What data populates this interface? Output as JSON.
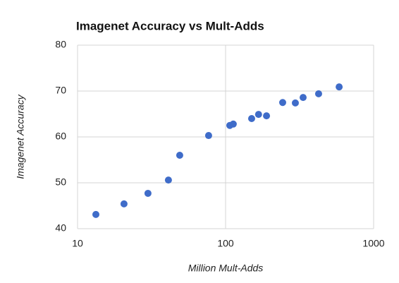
{
  "chart_data": {
    "type": "scatter",
    "title": "Imagenet Accuracy vs Mult-Adds",
    "xlabel": "Million Mult-Adds",
    "ylabel": "Imagenet Accuracy",
    "x": [
      13.3,
      20.6,
      29.9,
      41.1,
      49.0,
      76.8,
      106.8,
      112.7,
      150,
      167,
      189,
      243,
      296,
      334,
      425,
      585
    ],
    "values": [
      43.1,
      45.4,
      47.7,
      50.6,
      56.0,
      60.3,
      62.5,
      62.8,
      64.0,
      64.9,
      64.6,
      67.5,
      67.4,
      68.6,
      69.4,
      70.9
    ],
    "color": "#3f6cc9",
    "xscale": "log",
    "xlim": [
      10,
      1000
    ],
    "xticks": [
      10,
      100,
      1000
    ],
    "ylim": [
      40,
      80
    ],
    "yticks": [
      40,
      50,
      60,
      70,
      80
    ],
    "grid": true
  }
}
